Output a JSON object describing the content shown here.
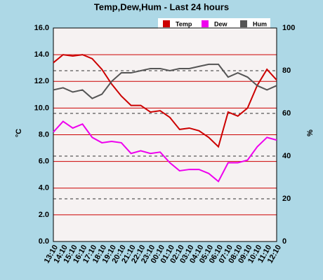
{
  "chart_data": {
    "type": "line",
    "title": "Temp,Dew,Hum - Last 24 hours",
    "y_label": "°C",
    "y2_label": "%",
    "categories": [
      "13:10",
      "14:10",
      "15:10",
      "16:10",
      "17:10",
      "18:10",
      "19:10",
      "20:10",
      "21:10",
      "22:10",
      "23:10",
      "00:10",
      "01:10",
      "02:10",
      "03:10",
      "04:10",
      "05:10",
      "06:10",
      "07:10",
      "08:10",
      "09:10",
      "10:10",
      "11:10",
      "12:10"
    ],
    "series": [
      {
        "name": "Temp",
        "color": "#cc0000",
        "values": [
          13.4,
          14.0,
          13.9,
          14.0,
          13.7,
          12.9,
          11.8,
          10.9,
          10.2,
          10.2,
          9.7,
          9.8,
          9.3,
          8.4,
          8.5,
          8.3,
          7.8,
          7.1,
          9.7,
          9.4,
          10.0,
          11.7,
          12.9,
          12.1
        ]
      },
      {
        "name": "Dew",
        "color": "#ee00ee",
        "values": [
          8.2,
          9.0,
          8.5,
          8.8,
          7.8,
          7.4,
          7.5,
          7.4,
          6.6,
          6.8,
          6.6,
          6.7,
          5.9,
          5.3,
          5.4,
          5.4,
          5.1,
          4.5,
          5.9,
          5.9,
          6.1,
          7.1,
          7.8,
          7.6
        ]
      },
      {
        "name": "Hum",
        "color": "#555555",
        "axis": "y2",
        "values": [
          71,
          72,
          70,
          71,
          67,
          69,
          75,
          79,
          79,
          80,
          81,
          81,
          80,
          81,
          81,
          82,
          83,
          83,
          77,
          79,
          77,
          73,
          71,
          73
        ]
      }
    ],
    "ylim": [
      0,
      16
    ],
    "yticks": [
      {
        "value": 0,
        "label": "0.0"
      },
      {
        "value": 2,
        "label": "2.0"
      },
      {
        "value": 4,
        "label": "4.0"
      },
      {
        "value": 6,
        "label": "6.0"
      },
      {
        "value": 8,
        "label": "8.0"
      },
      {
        "value": 10,
        "label": "10.0"
      },
      {
        "value": 12,
        "label": "12.0"
      },
      {
        "value": 14,
        "label": "14.0"
      },
      {
        "value": 16,
        "label": "16.0"
      }
    ],
    "y2lim": [
      0,
      100
    ],
    "y2ticks": [
      0,
      20,
      40,
      60,
      80,
      100
    ],
    "grid": true
  }
}
